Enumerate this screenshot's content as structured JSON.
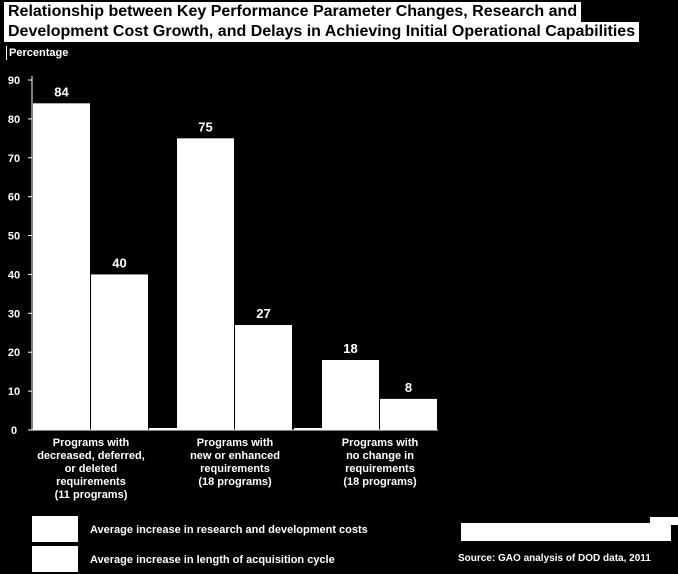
{
  "chart_data": {
    "type": "bar",
    "title_line1": "Relationship between Key Performance Parameter Changes, Research and",
    "title_line2": "Development Cost Growth, and Delays in Achieving Initial Operational Capabilities",
    "ylabel": "Percentage",
    "ylim": [
      0,
      90
    ],
    "yticks": [
      0,
      10,
      20,
      30,
      40,
      50,
      60,
      70,
      80,
      90
    ],
    "categories": [
      "Programs with\ndecreased, deferred,\nor deleted\nrequirements\n(11 programs)",
      "Programs with\nnew or enhanced\nrequirements\n(18 programs)",
      "Programs with\nno change in\nrequirements\n(18 programs)"
    ],
    "series": [
      {
        "name": "Average increase in research and development costs",
        "values": [
          84,
          75,
          18
        ]
      },
      {
        "name": "Average increase in length of acquisition cycle",
        "values": [
          40,
          27,
          8
        ]
      }
    ],
    "bar_color": "#ffffff",
    "background": "#000000",
    "source": "Source: GAO analysis of DOD data, 2011"
  }
}
